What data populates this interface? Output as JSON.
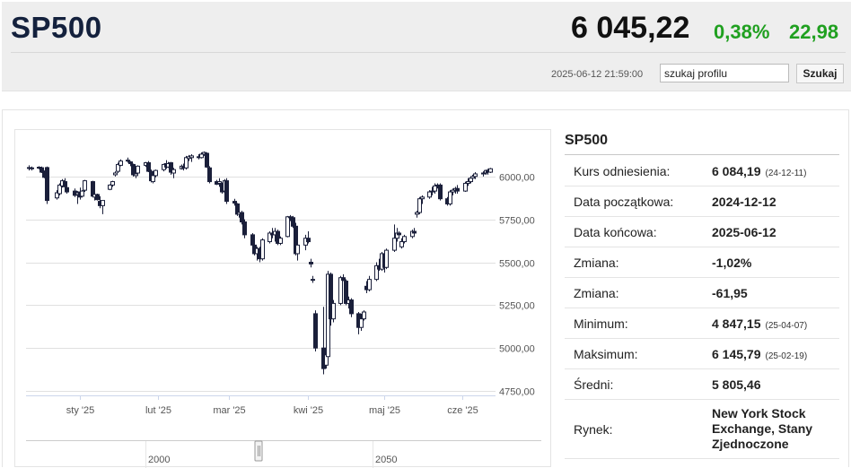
{
  "header": {
    "symbol": "SP500",
    "price": "6 045,22",
    "change_pct": "0,38%",
    "change_abs": "22,98",
    "timestamp": "2025-06-12 21:59:00",
    "search_value": "szukaj profilu",
    "search_button": "Szukaj",
    "change_color": "#20a020"
  },
  "info": {
    "title": "SP500",
    "rows": [
      {
        "label": "Kurs odniesienia:",
        "value": "6 084,19",
        "sub": "(24-12-11)"
      },
      {
        "label": "Data początkowa:",
        "value": "2024-12-12",
        "sub": ""
      },
      {
        "label": "Data końcowa:",
        "value": "2025-06-12",
        "sub": ""
      },
      {
        "label": "Zmiana:",
        "value": "-1,02%",
        "sub": ""
      },
      {
        "label": "Zmiana:",
        "value": "-61,95",
        "sub": ""
      },
      {
        "label": "Minimum:",
        "value": "4 847,15",
        "sub": "(25-04-07)"
      },
      {
        "label": "Maksimum:",
        "value": "6 145,79",
        "sub": "(25-02-19)"
      },
      {
        "label": "Średni:",
        "value": "5 805,46",
        "sub": ""
      },
      {
        "label": "Rynek:",
        "value": "New York Stock Exchange, Stany Zjednoczone",
        "sub": ""
      }
    ]
  },
  "chart_data": {
    "type": "candlestick",
    "y_ticks": [
      "6000,00",
      "5750,00",
      "5500,00",
      "5250,00",
      "5000,00",
      "4750,00"
    ],
    "y_tick_values": [
      6000,
      5750,
      5500,
      5250,
      5000,
      4750
    ],
    "ylim": [
      4750,
      6250
    ],
    "x_ticks": [
      {
        "label": "sty '25",
        "day": 20
      },
      {
        "label": "lut '25",
        "day": 51
      },
      {
        "label": "mar '25",
        "day": 79
      },
      {
        "label": "kwi '25",
        "day": 110
      },
      {
        "label": "maj '25",
        "day": 140
      },
      {
        "label": "cze '25",
        "day": 171
      }
    ],
    "x_day_range": [
      0,
      183
    ],
    "rising_color": "#ffffff",
    "falling_color": "#1a1f3a",
    "candles": [
      {
        "day": 0,
        "o": 6052,
        "h": 6065,
        "l": 6035,
        "c": 6048
      },
      {
        "day": 1,
        "o": 6046,
        "h": 6058,
        "l": 6035,
        "c": 6050
      },
      {
        "day": 4,
        "o": 6050,
        "h": 6060,
        "l": 6042,
        "c": 6054
      },
      {
        "day": 5,
        "o": 6051,
        "h": 6058,
        "l": 6020,
        "c": 6025
      },
      {
        "day": 6,
        "o": 6030,
        "h": 6035,
        "l": 5990,
        "c": 5995
      },
      {
        "day": 7,
        "o": 6052,
        "h": 6058,
        "l": 5840,
        "c": 5860
      },
      {
        "day": 11,
        "o": 5875,
        "h": 5920,
        "l": 5865,
        "c": 5905
      },
      {
        "day": 12,
        "o": 5900,
        "h": 5960,
        "l": 5890,
        "c": 5950
      },
      {
        "day": 13,
        "o": 5945,
        "h": 5985,
        "l": 5935,
        "c": 5975
      },
      {
        "day": 14,
        "o": 5970,
        "h": 5990,
        "l": 5930,
        "c": 5940
      },
      {
        "day": 15,
        "o": 5935,
        "h": 5945,
        "l": 5900,
        "c": 5910
      },
      {
        "day": 18,
        "o": 5915,
        "h": 5930,
        "l": 5880,
        "c": 5890
      },
      {
        "day": 19,
        "o": 5895,
        "h": 5915,
        "l": 5840,
        "c": 5905
      },
      {
        "day": 20,
        "o": 5910,
        "h": 5935,
        "l": 5865,
        "c": 5880
      },
      {
        "day": 21,
        "o": 5885,
        "h": 5920,
        "l": 5880,
        "c": 5915
      },
      {
        "day": 22,
        "o": 5920,
        "h": 5980,
        "l": 5910,
        "c": 5975
      },
      {
        "day": 25,
        "o": 5970,
        "h": 5975,
        "l": 5880,
        "c": 5885
      },
      {
        "day": 26,
        "o": 5880,
        "h": 5905,
        "l": 5860,
        "c": 5895
      },
      {
        "day": 27,
        "o": 5895,
        "h": 5900,
        "l": 5860,
        "c": 5865
      },
      {
        "day": 28,
        "o": 5855,
        "h": 5885,
        "l": 5815,
        "c": 5830
      },
      {
        "day": 29,
        "o": 5830,
        "h": 5860,
        "l": 5780,
        "c": 5860
      },
      {
        "day": 32,
        "o": 5925,
        "h": 5955,
        "l": 5920,
        "c": 5950
      },
      {
        "day": 33,
        "o": 5950,
        "h": 5975,
        "l": 5940,
        "c": 5970
      },
      {
        "day": 34,
        "o": 6010,
        "h": 6030,
        "l": 6000,
        "c": 6020
      },
      {
        "day": 35,
        "o": 6030,
        "h": 6080,
        "l": 6020,
        "c": 6070
      },
      {
        "day": 36,
        "o": 6065,
        "h": 6100,
        "l": 6060,
        "c": 6090
      },
      {
        "day": 39,
        "o": 6090,
        "h": 6110,
        "l": 6080,
        "c": 6095
      },
      {
        "day": 40,
        "o": 6085,
        "h": 6090,
        "l": 6060,
        "c": 6075
      },
      {
        "day": 41,
        "o": 6070,
        "h": 6075,
        "l": 6000,
        "c": 6010
      },
      {
        "day": 42,
        "o": 6005,
        "h": 6025,
        "l": 5990,
        "c": 6015
      },
      {
        "day": 43,
        "o": 6020,
        "h": 6065,
        "l": 6015,
        "c": 6060
      },
      {
        "day": 46,
        "o": 6065,
        "h": 6085,
        "l": 6055,
        "c": 6080
      },
      {
        "day": 47,
        "o": 6080,
        "h": 6090,
        "l": 6025,
        "c": 6030
      },
      {
        "day": 48,
        "o": 6030,
        "h": 6040,
        "l": 5965,
        "c": 5975
      },
      {
        "day": 49,
        "o": 5970,
        "h": 6015,
        "l": 5960,
        "c": 6005
      },
      {
        "day": 50,
        "o": 6005,
        "h": 6040,
        "l": 5995,
        "c": 6035
      },
      {
        "day": 53,
        "o": 6040,
        "h": 6075,
        "l": 6030,
        "c": 6070
      },
      {
        "day": 54,
        "o": 6075,
        "h": 6095,
        "l": 6045,
        "c": 6055
      },
      {
        "day": 55,
        "o": 6055,
        "h": 6085,
        "l": 6050,
        "c": 6075
      },
      {
        "day": 56,
        "o": 6080,
        "h": 6085,
        "l": 6010,
        "c": 6025
      },
      {
        "day": 57,
        "o": 6020,
        "h": 6050,
        "l": 5990,
        "c": 6040
      },
      {
        "day": 60,
        "o": 6045,
        "h": 6070,
        "l": 6040,
        "c": 6060
      },
      {
        "day": 61,
        "o": 6055,
        "h": 6075,
        "l": 6035,
        "c": 6050
      },
      {
        "day": 62,
        "o": 6050,
        "h": 6120,
        "l": 6040,
        "c": 6110
      },
      {
        "day": 63,
        "o": 6105,
        "h": 6125,
        "l": 6090,
        "c": 6115
      },
      {
        "day": 64,
        "o": 6110,
        "h": 6130,
        "l": 6085,
        "c": 6120
      },
      {
        "day": 67,
        "o": 6115,
        "h": 6130,
        "l": 6100,
        "c": 6110
      },
      {
        "day": 68,
        "o": 6110,
        "h": 6140,
        "l": 6105,
        "c": 6130
      },
      {
        "day": 69,
        "o": 6130,
        "h": 6146,
        "l": 6120,
        "c": 6140
      },
      {
        "day": 70,
        "o": 6135,
        "h": 6140,
        "l": 6050,
        "c": 6055
      },
      {
        "day": 71,
        "o": 6050,
        "h": 6060,
        "l": 5960,
        "c": 5970
      },
      {
        "day": 74,
        "o": 5970,
        "h": 5980,
        "l": 5950,
        "c": 5955
      },
      {
        "day": 75,
        "o": 5960,
        "h": 5990,
        "l": 5940,
        "c": 5970
      },
      {
        "day": 76,
        "o": 5955,
        "h": 5965,
        "l": 5900,
        "c": 5910
      },
      {
        "day": 77,
        "o": 5915,
        "h": 5985,
        "l": 5910,
        "c": 5975
      },
      {
        "day": 78,
        "o": 5975,
        "h": 5990,
        "l": 5840,
        "c": 5855
      },
      {
        "day": 81,
        "o": 5855,
        "h": 5870,
        "l": 5830,
        "c": 5845
      },
      {
        "day": 82,
        "o": 5840,
        "h": 5845,
        "l": 5770,
        "c": 5780
      },
      {
        "day": 83,
        "o": 5780,
        "h": 5810,
        "l": 5760,
        "c": 5790
      },
      {
        "day": 84,
        "o": 5790,
        "h": 5800,
        "l": 5720,
        "c": 5735
      },
      {
        "day": 85,
        "o": 5735,
        "h": 5750,
        "l": 5640,
        "c": 5660
      },
      {
        "day": 88,
        "o": 5660,
        "h": 5670,
        "l": 5590,
        "c": 5600
      },
      {
        "day": 89,
        "o": 5600,
        "h": 5620,
        "l": 5540,
        "c": 5550
      },
      {
        "day": 90,
        "o": 5550,
        "h": 5590,
        "l": 5510,
        "c": 5580
      },
      {
        "day": 91,
        "o": 5580,
        "h": 5590,
        "l": 5500,
        "c": 5520
      },
      {
        "day": 92,
        "o": 5520,
        "h": 5640,
        "l": 5510,
        "c": 5630
      },
      {
        "day": 95,
        "o": 5620,
        "h": 5680,
        "l": 5610,
        "c": 5670
      },
      {
        "day": 96,
        "o": 5670,
        "h": 5700,
        "l": 5640,
        "c": 5660
      },
      {
        "day": 97,
        "o": 5660,
        "h": 5700,
        "l": 5620,
        "c": 5680
      },
      {
        "day": 98,
        "o": 5680,
        "h": 5690,
        "l": 5600,
        "c": 5610
      },
      {
        "day": 99,
        "o": 5610,
        "h": 5650,
        "l": 5600,
        "c": 5640
      },
      {
        "day": 102,
        "o": 5650,
        "h": 5770,
        "l": 5645,
        "c": 5765
      },
      {
        "day": 103,
        "o": 5765,
        "h": 5775,
        "l": 5740,
        "c": 5760
      },
      {
        "day": 104,
        "o": 5760,
        "h": 5770,
        "l": 5700,
        "c": 5710
      },
      {
        "day": 105,
        "o": 5710,
        "h": 5730,
        "l": 5540,
        "c": 5550
      },
      {
        "day": 106,
        "o": 5550,
        "h": 5620,
        "l": 5510,
        "c": 5600
      },
      {
        "day": 109,
        "o": 5600,
        "h": 5660,
        "l": 5570,
        "c": 5640
      },
      {
        "day": 110,
        "o": 5640,
        "h": 5680,
        "l": 5610,
        "c": 5620
      },
      {
        "day": 111,
        "o": 5500,
        "h": 5520,
        "l": 5470,
        "c": 5490
      },
      {
        "day": 112,
        "o": 5400,
        "h": 5420,
        "l": 5380,
        "c": 5400
      },
      {
        "day": 113,
        "o": 5200,
        "h": 5220,
        "l": 4980,
        "c": 5000
      },
      {
        "day": 116,
        "o": 5000,
        "h": 5240,
        "l": 4847,
        "c": 4880
      },
      {
        "day": 117,
        "o": 4900,
        "h": 5000,
        "l": 4880,
        "c": 4960
      },
      {
        "day": 118,
        "o": 4950,
        "h": 5450,
        "l": 4940,
        "c": 5430
      },
      {
        "day": 119,
        "o": 5430,
        "h": 5440,
        "l": 5130,
        "c": 5170
      },
      {
        "day": 120,
        "o": 5170,
        "h": 5280,
        "l": 5150,
        "c": 5260
      },
      {
        "day": 123,
        "o": 5260,
        "h": 5420,
        "l": 5250,
        "c": 5410
      },
      {
        "day": 124,
        "o": 5410,
        "h": 5430,
        "l": 5390,
        "c": 5395
      },
      {
        "day": 125,
        "o": 5390,
        "h": 5400,
        "l": 5250,
        "c": 5260
      },
      {
        "day": 126,
        "o": 5260,
        "h": 5300,
        "l": 5230,
        "c": 5280
      },
      {
        "day": 127,
        "o": 5280,
        "h": 5290,
        "l": 5180,
        "c": 5200
      },
      {
        "day": 130,
        "o": 5200,
        "h": 5210,
        "l": 5080,
        "c": 5120
      },
      {
        "day": 131,
        "o": 5120,
        "h": 5200,
        "l": 5100,
        "c": 5170
      },
      {
        "day": 132,
        "o": 5170,
        "h": 5220,
        "l": 5160,
        "c": 5210
      },
      {
        "day": 133,
        "o": 5360,
        "h": 5390,
        "l": 5320,
        "c": 5340
      },
      {
        "day": 134,
        "o": 5340,
        "h": 5420,
        "l": 5330,
        "c": 5400
      },
      {
        "day": 137,
        "o": 5400,
        "h": 5500,
        "l": 5390,
        "c": 5480
      },
      {
        "day": 138,
        "o": 5480,
        "h": 5520,
        "l": 5450,
        "c": 5460
      },
      {
        "day": 139,
        "o": 5460,
        "h": 5560,
        "l": 5450,
        "c": 5550
      },
      {
        "day": 140,
        "o": 5550,
        "h": 5570,
        "l": 5440,
        "c": 5470
      },
      {
        "day": 141,
        "o": 5470,
        "h": 5580,
        "l": 5460,
        "c": 5570
      },
      {
        "day": 144,
        "o": 5570,
        "h": 5720,
        "l": 5560,
        "c": 5640
      },
      {
        "day": 145,
        "o": 5640,
        "h": 5700,
        "l": 5620,
        "c": 5670
      },
      {
        "day": 146,
        "o": 5670,
        "h": 5680,
        "l": 5640,
        "c": 5660
      },
      {
        "day": 147,
        "o": 5590,
        "h": 5640,
        "l": 5580,
        "c": 5620
      },
      {
        "day": 148,
        "o": 5620,
        "h": 5660,
        "l": 5610,
        "c": 5650
      },
      {
        "day": 151,
        "o": 5650,
        "h": 5690,
        "l": 5640,
        "c": 5680
      },
      {
        "day": 152,
        "o": 5680,
        "h": 5700,
        "l": 5660,
        "c": 5670
      },
      {
        "day": 153,
        "o": 5780,
        "h": 5800,
        "l": 5760,
        "c": 5790
      },
      {
        "day": 154,
        "o": 5790,
        "h": 5880,
        "l": 5780,
        "c": 5870
      },
      {
        "day": 155,
        "o": 5870,
        "h": 5890,
        "l": 5840,
        "c": 5880
      },
      {
        "day": 158,
        "o": 5880,
        "h": 5920,
        "l": 5870,
        "c": 5910
      },
      {
        "day": 159,
        "o": 5910,
        "h": 5940,
        "l": 5890,
        "c": 5915
      },
      {
        "day": 160,
        "o": 5915,
        "h": 5960,
        "l": 5900,
        "c": 5945
      },
      {
        "day": 161,
        "o": 5945,
        "h": 5960,
        "l": 5930,
        "c": 5950
      },
      {
        "day": 162,
        "o": 5950,
        "h": 5960,
        "l": 5860,
        "c": 5870
      },
      {
        "day": 165,
        "o": 5870,
        "h": 5880,
        "l": 5830,
        "c": 5840
      },
      {
        "day": 166,
        "o": 5840,
        "h": 5920,
        "l": 5830,
        "c": 5910
      },
      {
        "day": 167,
        "o": 5910,
        "h": 5930,
        "l": 5890,
        "c": 5920
      },
      {
        "day": 168,
        "o": 5920,
        "h": 5940,
        "l": 5900,
        "c": 5930
      },
      {
        "day": 169,
        "o": 5930,
        "h": 5950,
        "l": 5900,
        "c": 5915
      },
      {
        "day": 172,
        "o": 5915,
        "h": 5970,
        "l": 5910,
        "c": 5960
      },
      {
        "day": 173,
        "o": 5960,
        "h": 5990,
        "l": 5945,
        "c": 5970
      },
      {
        "day": 174,
        "o": 5970,
        "h": 6000,
        "l": 5960,
        "c": 5990
      },
      {
        "day": 175,
        "o": 5990,
        "h": 6010,
        "l": 5970,
        "c": 6000
      },
      {
        "day": 176,
        "o": 6000,
        "h": 6025,
        "l": 5985,
        "c": 6015
      },
      {
        "day": 179,
        "o": 6015,
        "h": 6030,
        "l": 6000,
        "c": 6020
      },
      {
        "day": 180,
        "o": 6020,
        "h": 6040,
        "l": 6010,
        "c": 6035
      },
      {
        "day": 181,
        "o": 6035,
        "h": 6045,
        "l": 6010,
        "c": 6025
      },
      {
        "day": 182,
        "o": 6025,
        "h": 6050,
        "l": 6020,
        "c": 6045
      }
    ],
    "navigator": {
      "labels": [
        "2000",
        "2050"
      ]
    }
  }
}
